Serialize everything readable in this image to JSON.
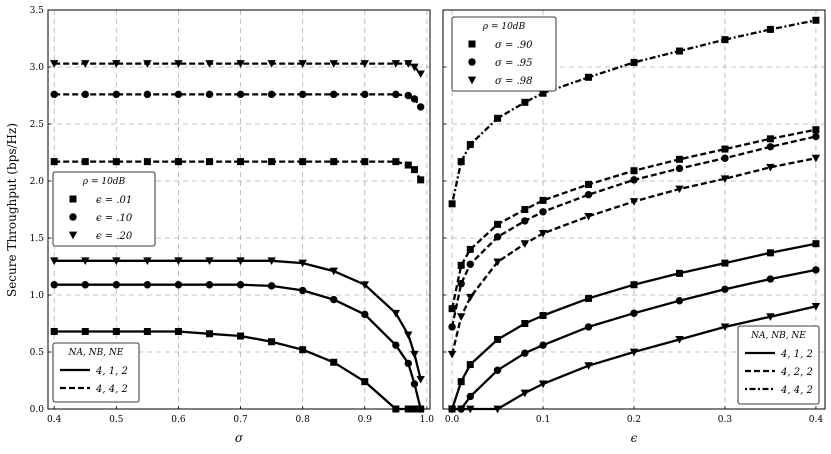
{
  "figure": {
    "ylabel": "Secure Throughput (bps/Hz)"
  },
  "chart_data": [
    {
      "type": "line",
      "xlabel": "σ",
      "ylabel": "Secure Throughput (bps/Hz)",
      "xlim": [
        0.39,
        1.005
      ],
      "ylim": [
        0,
        3.5
      ],
      "xticks": [
        "0.4",
        "0.5",
        "0.6",
        "0.7",
        "0.8",
        "0.9",
        "1.0"
      ],
      "yticks": [
        "0.0",
        "0.5",
        "1.0",
        "1.5",
        "2.0",
        "2.5",
        "3.0",
        "3.5"
      ],
      "grid": true,
      "legends": [
        {
          "title": "ρ = 10dB",
          "placement": "middle-left",
          "entries": [
            {
              "marker": "square",
              "label": "ϵ = .01"
            },
            {
              "marker": "circle",
              "label": "ϵ = .10"
            },
            {
              "marker": "triangle-down",
              "label": "ϵ = .20"
            }
          ]
        },
        {
          "title": "NA, NB, NE",
          "placement": "lower-left",
          "entries": [
            {
              "dash": "solid",
              "label": "4, 1, 2"
            },
            {
              "dash": "dashed",
              "label": "4, 4, 2"
            }
          ]
        }
      ],
      "series": [
        {
          "config": "4,1,2",
          "eps": ".01",
          "marker": "square",
          "dash": "solid",
          "x": [
            0.4,
            0.45,
            0.5,
            0.55,
            0.6,
            0.65,
            0.7,
            0.75,
            0.8,
            0.85,
            0.9,
            0.95,
            0.97,
            0.98,
            0.99
          ],
          "y": [
            0.68,
            0.68,
            0.68,
            0.68,
            0.68,
            0.66,
            0.64,
            0.59,
            0.52,
            0.41,
            0.24,
            0.0,
            0.0,
            0.0,
            0.0
          ]
        },
        {
          "config": "4,1,2",
          "eps": ".10",
          "marker": "circle",
          "dash": "solid",
          "x": [
            0.4,
            0.45,
            0.5,
            0.55,
            0.6,
            0.65,
            0.7,
            0.75,
            0.8,
            0.85,
            0.9,
            0.95,
            0.97,
            0.98,
            0.99
          ],
          "y": [
            1.09,
            1.09,
            1.09,
            1.09,
            1.09,
            1.09,
            1.09,
            1.08,
            1.04,
            0.96,
            0.83,
            0.56,
            0.4,
            0.22,
            0.0
          ]
        },
        {
          "config": "4,1,2",
          "eps": ".20",
          "marker": "triangle-down",
          "dash": "solid",
          "x": [
            0.4,
            0.45,
            0.5,
            0.55,
            0.6,
            0.65,
            0.7,
            0.75,
            0.8,
            0.85,
            0.9,
            0.95,
            0.97,
            0.98,
            0.99
          ],
          "y": [
            1.3,
            1.3,
            1.3,
            1.3,
            1.3,
            1.3,
            1.3,
            1.3,
            1.28,
            1.21,
            1.09,
            0.84,
            0.65,
            0.48,
            0.26
          ]
        },
        {
          "config": "4,4,2",
          "eps": ".01",
          "marker": "square",
          "dash": "dashed",
          "x": [
            0.4,
            0.45,
            0.5,
            0.55,
            0.6,
            0.65,
            0.7,
            0.75,
            0.8,
            0.85,
            0.9,
            0.95,
            0.97,
            0.98,
            0.99
          ],
          "y": [
            2.17,
            2.17,
            2.17,
            2.17,
            2.17,
            2.17,
            2.17,
            2.17,
            2.17,
            2.17,
            2.17,
            2.17,
            2.14,
            2.1,
            2.01
          ]
        },
        {
          "config": "4,4,2",
          "eps": ".10",
          "marker": "circle",
          "dash": "dashed",
          "x": [
            0.4,
            0.45,
            0.5,
            0.55,
            0.6,
            0.65,
            0.7,
            0.75,
            0.8,
            0.85,
            0.9,
            0.95,
            0.97,
            0.98,
            0.99
          ],
          "y": [
            2.76,
            2.76,
            2.76,
            2.76,
            2.76,
            2.76,
            2.76,
            2.76,
            2.76,
            2.76,
            2.76,
            2.76,
            2.75,
            2.72,
            2.65
          ]
        },
        {
          "config": "4,4,2",
          "eps": ".20",
          "marker": "triangle-down",
          "dash": "dashed",
          "x": [
            0.4,
            0.45,
            0.5,
            0.55,
            0.6,
            0.65,
            0.7,
            0.75,
            0.8,
            0.85,
            0.9,
            0.95,
            0.97,
            0.98,
            0.99
          ],
          "y": [
            3.03,
            3.03,
            3.03,
            3.03,
            3.03,
            3.03,
            3.03,
            3.03,
            3.03,
            3.03,
            3.03,
            3.03,
            3.03,
            3.0,
            2.94
          ]
        }
      ]
    },
    {
      "type": "line",
      "xlabel": "ϵ",
      "ylabel": "",
      "xlim": [
        -0.01,
        0.41
      ],
      "ylim": [
        0,
        3.5
      ],
      "xticks": [
        "0.0",
        "0.1",
        "0.2",
        "0.3",
        "0.4"
      ],
      "yticks": [
        "0.0",
        "0.5",
        "1.0",
        "1.5",
        "2.0",
        "2.5",
        "3.0",
        "3.5"
      ],
      "grid": true,
      "legends": [
        {
          "title": "ρ = 10dB",
          "placement": "upper-left",
          "entries": [
            {
              "marker": "square",
              "label": "σ = .90"
            },
            {
              "marker": "circle",
              "label": "σ = .95"
            },
            {
              "marker": "triangle-down",
              "label": "σ = .98"
            }
          ]
        },
        {
          "title": "NA, NB, NE",
          "placement": "lower-right",
          "entries": [
            {
              "dash": "solid",
              "label": "4, 1, 2"
            },
            {
              "dash": "dashed",
              "label": "4, 2, 2"
            },
            {
              "dash": "dashdot",
              "label": "4, 4, 2"
            }
          ]
        }
      ],
      "series": [
        {
          "config": "4,1,2",
          "sigma": ".90",
          "marker": "square",
          "dash": "solid",
          "x": [
            0,
            0.01,
            0.02,
            0.05,
            0.08,
            0.1,
            0.15,
            0.2,
            0.25,
            0.3,
            0.35,
            0.4
          ],
          "y": [
            0.0,
            0.24,
            0.39,
            0.61,
            0.75,
            0.82,
            0.97,
            1.09,
            1.19,
            1.28,
            1.37,
            1.45
          ]
        },
        {
          "config": "4,1,2",
          "sigma": ".95",
          "marker": "circle",
          "dash": "solid",
          "x": [
            0,
            0.01,
            0.02,
            0.05,
            0.08,
            0.1,
            0.15,
            0.2,
            0.25,
            0.3,
            0.35,
            0.4
          ],
          "y": [
            0.0,
            0.0,
            0.11,
            0.34,
            0.49,
            0.56,
            0.72,
            0.84,
            0.95,
            1.05,
            1.14,
            1.22
          ]
        },
        {
          "config": "4,1,2",
          "sigma": ".98",
          "marker": "triangle-down",
          "dash": "solid",
          "x": [
            0,
            0.01,
            0.02,
            0.05,
            0.08,
            0.1,
            0.15,
            0.2,
            0.25,
            0.3,
            0.35,
            0.4
          ],
          "y": [
            0.0,
            0.0,
            0.0,
            0.0,
            0.14,
            0.22,
            0.38,
            0.5,
            0.61,
            0.72,
            0.81,
            0.9
          ]
        },
        {
          "config": "4,2,2",
          "sigma": ".90",
          "marker": "square",
          "dash": "dashed",
          "x": [
            0,
            0.01,
            0.02,
            0.05,
            0.08,
            0.1,
            0.15,
            0.2,
            0.25,
            0.3,
            0.35,
            0.4
          ],
          "y": [
            0.88,
            1.26,
            1.4,
            1.62,
            1.75,
            1.83,
            1.97,
            2.09,
            2.19,
            2.28,
            2.37,
            2.45
          ]
        },
        {
          "config": "4,2,2",
          "sigma": ".95",
          "marker": "circle",
          "dash": "dashed",
          "x": [
            0,
            0.01,
            0.02,
            0.05,
            0.08,
            0.1,
            0.15,
            0.2,
            0.25,
            0.3,
            0.35,
            0.4
          ],
          "y": [
            0.72,
            1.1,
            1.27,
            1.51,
            1.65,
            1.73,
            1.88,
            2.01,
            2.11,
            2.2,
            2.3,
            2.39
          ]
        },
        {
          "config": "4,2,2",
          "sigma": ".98",
          "marker": "triangle-down",
          "dash": "dashed",
          "x": [
            0,
            0.01,
            0.02,
            0.05,
            0.08,
            0.1,
            0.15,
            0.2,
            0.25,
            0.3,
            0.35,
            0.4
          ],
          "y": [
            0.48,
            0.81,
            0.98,
            1.29,
            1.45,
            1.54,
            1.69,
            1.82,
            1.93,
            2.02,
            2.12,
            2.2
          ]
        },
        {
          "config": "4,4,2",
          "sigma": ".90",
          "marker": "square",
          "dash": "dashdot",
          "x": [
            0,
            0.01,
            0.02,
            0.05,
            0.08,
            0.1,
            0.15,
            0.2,
            0.25,
            0.3,
            0.35,
            0.4
          ],
          "y": [
            1.8,
            2.17,
            2.32,
            2.55,
            2.69,
            2.77,
            2.91,
            3.04,
            3.14,
            3.24,
            3.33,
            3.41
          ]
        }
      ]
    }
  ]
}
